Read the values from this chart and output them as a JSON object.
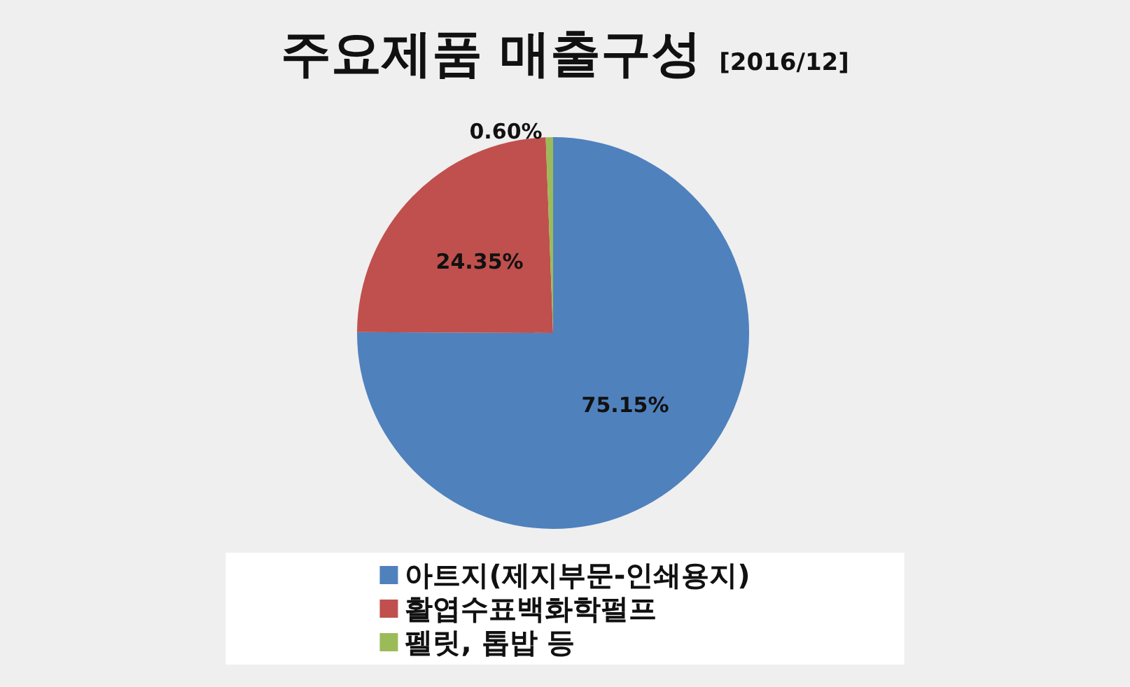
{
  "chart_data": {
    "type": "pie",
    "title": "주요제품 매출구성",
    "subtitle": "[2016/12]",
    "categories": [
      "아트지(제지부문-인쇄용지)",
      "활엽수표백화학펄프",
      "펠릿, 톱밥 등"
    ],
    "values": [
      75.15,
      24.35,
      0.6
    ],
    "colors": [
      "#4f81bd",
      "#c0504d",
      "#9bbb59"
    ],
    "value_labels": [
      "75.15%",
      "24.35%",
      "0.60%"
    ],
    "legend": "bottom"
  }
}
